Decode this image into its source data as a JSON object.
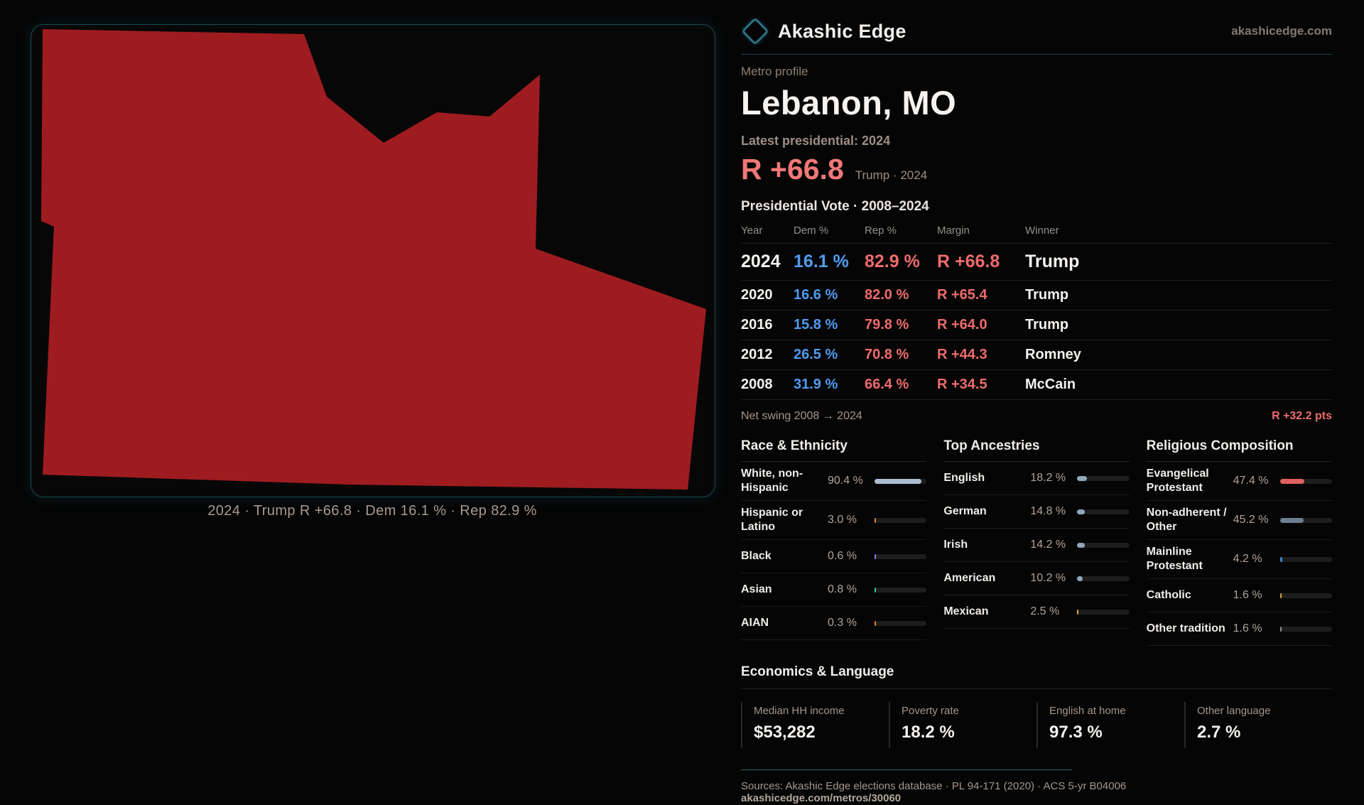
{
  "brand": {
    "name": "Akashic Edge",
    "site": "akashicedge.com"
  },
  "profile": {
    "kicker": "Metro profile",
    "title": "Lebanon, MO",
    "latest_label": "Latest presidential: 2024",
    "headline_margin": "R +66.8",
    "headline_note": "Trump · 2024"
  },
  "map": {
    "caption": "2024 · Trump R +66.8 · Dem 16.1 % · Rep 82.9 %",
    "fill_color": "#9e1c20",
    "border_color": "#1e4953"
  },
  "vote_table": {
    "title": "Presidential Vote · 2008–2024",
    "columns": [
      "Year",
      "Dem %",
      "Rep %",
      "Margin",
      "Winner"
    ],
    "rows": [
      {
        "year": "2024",
        "dem": "16.1 %",
        "rep": "82.9 %",
        "margin": "R +66.8",
        "winner": "Trump",
        "emphasis": true
      },
      {
        "year": "2020",
        "dem": "16.6 %",
        "rep": "82.0 %",
        "margin": "R +65.4",
        "winner": "Trump",
        "emphasis": false
      },
      {
        "year": "2016",
        "dem": "15.8 %",
        "rep": "79.8 %",
        "margin": "R +64.0",
        "winner": "Trump",
        "emphasis": false
      },
      {
        "year": "2012",
        "dem": "26.5 %",
        "rep": "70.8 %",
        "margin": "R +44.3",
        "winner": "Romney",
        "emphasis": false
      },
      {
        "year": "2008",
        "dem": "31.9 %",
        "rep": "66.4 %",
        "margin": "R +34.5",
        "winner": "McCain",
        "emphasis": false
      }
    ],
    "dem_color": "#4f9cf0",
    "rep_color": "#ef6c6c"
  },
  "net_swing": {
    "label": "Net swing 2008 → 2024",
    "value": "R +32.2 pts"
  },
  "demographics": [
    {
      "title": "Race & Ethnicity",
      "rows": [
        {
          "label": "White, non-Hispanic",
          "value": "90.4 %",
          "pct": 90.4,
          "color": "#a9bcd0"
        },
        {
          "label": "Hispanic or Latino",
          "value": "3.0 %",
          "pct": 3.0,
          "color": "#e0862e"
        },
        {
          "label": "Black",
          "value": "0.6 %",
          "pct": 0.6,
          "color": "#8b7ff0"
        },
        {
          "label": "Asian",
          "value": "0.8 %",
          "pct": 0.8,
          "color": "#35c9a3"
        },
        {
          "label": "AIAN",
          "value": "0.3 %",
          "pct": 0.3,
          "color": "#e07b39"
        }
      ]
    },
    {
      "title": "Top Ancestries",
      "rows": [
        {
          "label": "English",
          "value": "18.2 %",
          "pct": 18.2,
          "color": "#8fa7bd"
        },
        {
          "label": "German",
          "value": "14.8 %",
          "pct": 14.8,
          "color": "#8fa7bd"
        },
        {
          "label": "Irish",
          "value": "14.2 %",
          "pct": 14.2,
          "color": "#8fa7bd"
        },
        {
          "label": "American",
          "value": "10.2 %",
          "pct": 10.2,
          "color": "#8fa7bd"
        },
        {
          "label": "Mexican",
          "value": "2.5 %",
          "pct": 2.5,
          "color": "#e2a33c"
        }
      ]
    },
    {
      "title": "Religious Composition",
      "rows": [
        {
          "label": "Evangelical Protestant",
          "value": "47.4 %",
          "pct": 47.4,
          "color": "#e06060"
        },
        {
          "label": "Non-adherent / Other",
          "value": "45.2 %",
          "pct": 45.2,
          "color": "#6e7e90"
        },
        {
          "label": "Mainline Protestant",
          "value": "4.2 %",
          "pct": 4.2,
          "color": "#3b82d6"
        },
        {
          "label": "Catholic",
          "value": "1.6 %",
          "pct": 1.6,
          "color": "#d6a23c"
        },
        {
          "label": "Other tradition",
          "value": "1.6 %",
          "pct": 1.6,
          "color": "#8f8f8f"
        }
      ]
    }
  ],
  "economics": {
    "title": "Economics & Language",
    "stats": [
      {
        "label": "Median HH income",
        "value": "$53,282"
      },
      {
        "label": "Poverty rate",
        "value": "18.2 %"
      },
      {
        "label": "English at home",
        "value": "97.3 %"
      },
      {
        "label": "Other language",
        "value": "2.7 %"
      }
    ]
  },
  "footer": {
    "sources": "Sources: Akashic Edge elections database · PL 94-171 (2020) · ACS 5-yr B04006",
    "permalink": "akashicedge.com/metros/30060"
  }
}
